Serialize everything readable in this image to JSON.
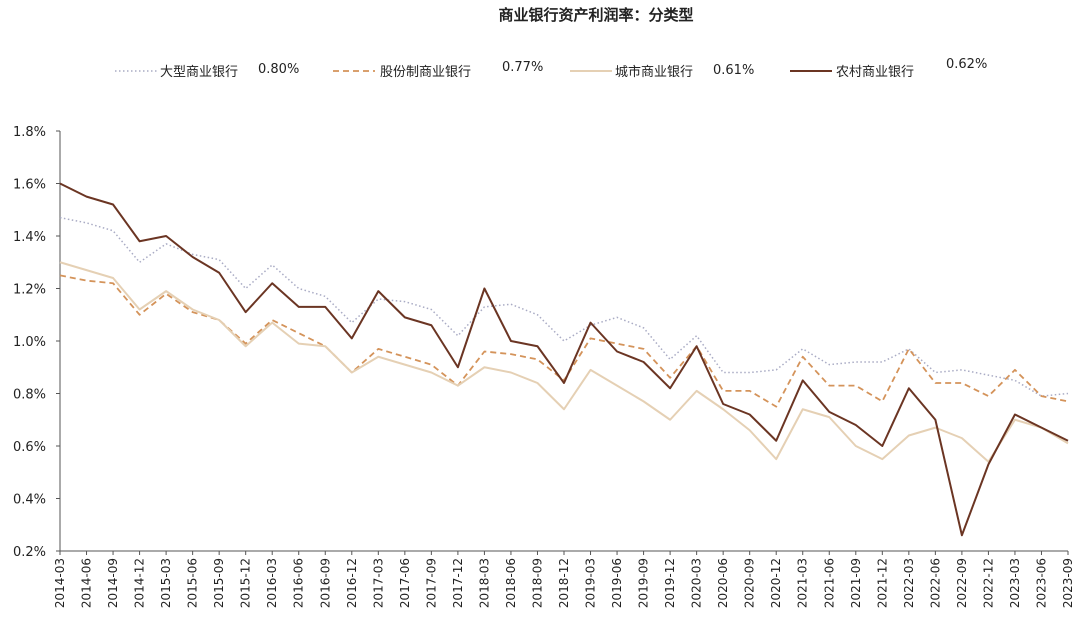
{
  "chart_data": {
    "type": "line",
    "title": "商业银行资产利润率：分类型",
    "xlabel": "",
    "ylabel": "",
    "ylim": [
      0.2,
      1.8
    ],
    "y_ticks": [
      0.2,
      0.4,
      0.6,
      0.8,
      1.0,
      1.2,
      1.4,
      1.6,
      1.8
    ],
    "y_tick_labels": [
      "0.2%",
      "0.4%",
      "0.6%",
      "0.8%",
      "1.0%",
      "1.2%",
      "1.4%",
      "1.6%",
      "1.8%"
    ],
    "grid": false,
    "legend_position": "top",
    "categories": [
      "2014-03",
      "2014-06",
      "2014-09",
      "2014-12",
      "2015-03",
      "2015-06",
      "2015-09",
      "2015-12",
      "2016-03",
      "2016-06",
      "2016-09",
      "2016-12",
      "2017-03",
      "2017-06",
      "2017-09",
      "2017-12",
      "2018-03",
      "2018-06",
      "2018-09",
      "2018-12",
      "2019-03",
      "2019-06",
      "2019-09",
      "2019-12",
      "2020-03",
      "2020-06",
      "2020-09",
      "2020-12",
      "2021-03",
      "2021-06",
      "2021-09",
      "2021-12",
      "2022-03",
      "2022-06",
      "2022-09",
      "2022-12",
      "2023-03",
      "2023-06",
      "2023-09"
    ],
    "series": [
      {
        "name": "大型商业银行",
        "latest_label": "0.80%",
        "color": "#a9abc4",
        "style": "dotted",
        "values": [
          1.47,
          1.45,
          1.42,
          1.3,
          1.37,
          1.33,
          1.31,
          1.2,
          1.29,
          1.2,
          1.17,
          1.07,
          1.16,
          1.15,
          1.12,
          1.02,
          1.13,
          1.14,
          1.1,
          1.0,
          1.06,
          1.09,
          1.05,
          0.93,
          1.02,
          0.88,
          0.88,
          0.89,
          0.97,
          0.91,
          0.92,
          0.92,
          0.97,
          0.88,
          0.89,
          0.87,
          0.85,
          0.79,
          0.8
        ]
      },
      {
        "name": "股份制商业银行",
        "latest_label": "0.77%",
        "color": "#d4935a",
        "style": "dashed",
        "values": [
          1.25,
          1.23,
          1.22,
          1.1,
          1.18,
          1.11,
          1.08,
          0.99,
          1.08,
          1.03,
          0.98,
          0.88,
          0.97,
          0.94,
          0.91,
          0.83,
          0.96,
          0.95,
          0.93,
          0.85,
          1.01,
          0.99,
          0.97,
          0.86,
          0.98,
          0.81,
          0.81,
          0.75,
          0.94,
          0.83,
          0.83,
          0.77,
          0.97,
          0.84,
          0.84,
          0.79,
          0.89,
          0.79,
          0.77
        ]
      },
      {
        "name": "城市商业银行",
        "latest_label": "0.61%",
        "color": "#e5d0b4",
        "style": "solid",
        "values": [
          1.3,
          1.27,
          1.24,
          1.12,
          1.19,
          1.12,
          1.08,
          0.98,
          1.07,
          0.99,
          0.98,
          0.88,
          0.94,
          0.91,
          0.88,
          0.83,
          0.9,
          0.88,
          0.84,
          0.74,
          0.89,
          0.83,
          0.77,
          0.7,
          0.81,
          0.74,
          0.66,
          0.55,
          0.74,
          0.71,
          0.6,
          0.55,
          0.64,
          0.67,
          0.63,
          0.54,
          0.7,
          0.67,
          0.61
        ]
      },
      {
        "name": "农村商业银行",
        "latest_label": "0.62%",
        "color": "#6b3523",
        "style": "solid-thick",
        "values": [
          1.6,
          1.55,
          1.52,
          1.38,
          1.4,
          1.32,
          1.26,
          1.11,
          1.22,
          1.13,
          1.13,
          1.01,
          1.19,
          1.09,
          1.06,
          0.9,
          1.2,
          1.0,
          0.98,
          0.84,
          1.07,
          0.96,
          0.92,
          0.82,
          0.98,
          0.76,
          0.72,
          0.62,
          0.85,
          0.73,
          0.68,
          0.6,
          0.82,
          0.7,
          0.26,
          0.53,
          0.72,
          0.67,
          0.62
        ]
      }
    ]
  }
}
